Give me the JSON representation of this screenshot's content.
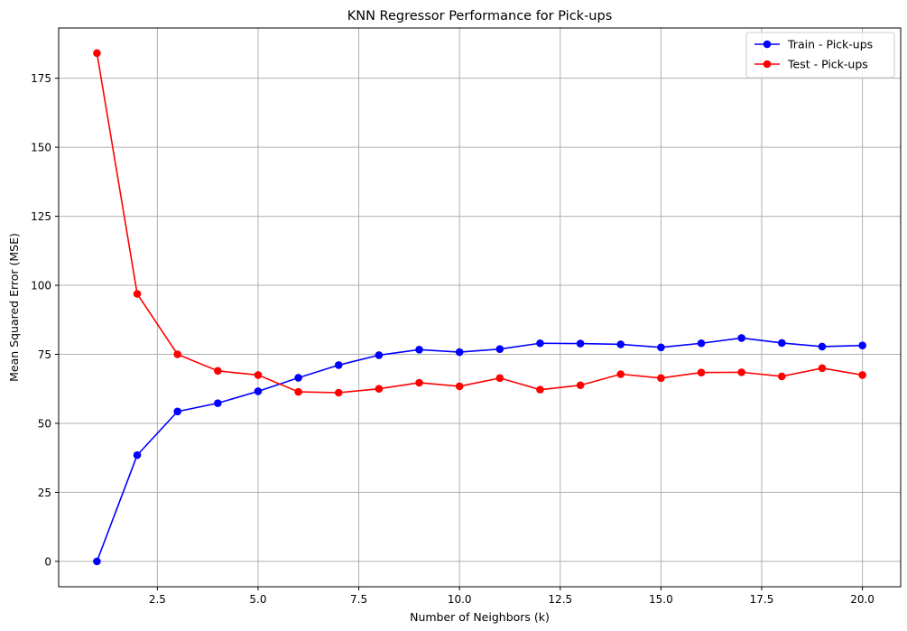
{
  "chart_data": {
    "type": "line",
    "title": "KNN Regressor Performance for Pick-ups",
    "xlabel": "Number of Neighbors (k)",
    "ylabel": "Mean Squared Error (MSE)",
    "xlim": [
      0.05,
      20.95
    ],
    "ylim": [
      -9.2,
      193.2
    ],
    "xticks": [
      2.5,
      5.0,
      7.5,
      10.0,
      12.5,
      15.0,
      17.5,
      20.0
    ],
    "xtick_labels": [
      "2.5",
      "5.0",
      "7.5",
      "10.0",
      "12.5",
      "15.0",
      "17.5",
      "20.0"
    ],
    "yticks": [
      0,
      25,
      50,
      75,
      100,
      125,
      150,
      175
    ],
    "ytick_labels": [
      "0",
      "25",
      "50",
      "75",
      "100",
      "125",
      "150",
      "175"
    ],
    "grid": true,
    "legend_position": "top-right",
    "x": [
      1,
      2,
      3,
      4,
      5,
      6,
      7,
      8,
      9,
      10,
      11,
      12,
      13,
      14,
      15,
      16,
      17,
      18,
      19,
      20
    ],
    "series": [
      {
        "name": "Train - Pick-ups",
        "color": "#0000ff",
        "values": [
          0,
          38.5,
          54.3,
          57.3,
          61.6,
          66.5,
          71.1,
          74.7,
          76.7,
          75.8,
          76.9,
          79.0,
          78.9,
          78.6,
          77.5,
          79.0,
          80.9,
          79.1,
          77.8,
          78.2
        ]
      },
      {
        "name": "Test - Pick-ups",
        "color": "#ff0000",
        "values": [
          184.1,
          96.9,
          75.0,
          69.0,
          67.5,
          61.4,
          61.1,
          62.5,
          64.7,
          63.4,
          66.4,
          62.2,
          63.8,
          67.8,
          66.4,
          68.4,
          68.5,
          67.0,
          70.0,
          67.5
        ]
      }
    ]
  }
}
